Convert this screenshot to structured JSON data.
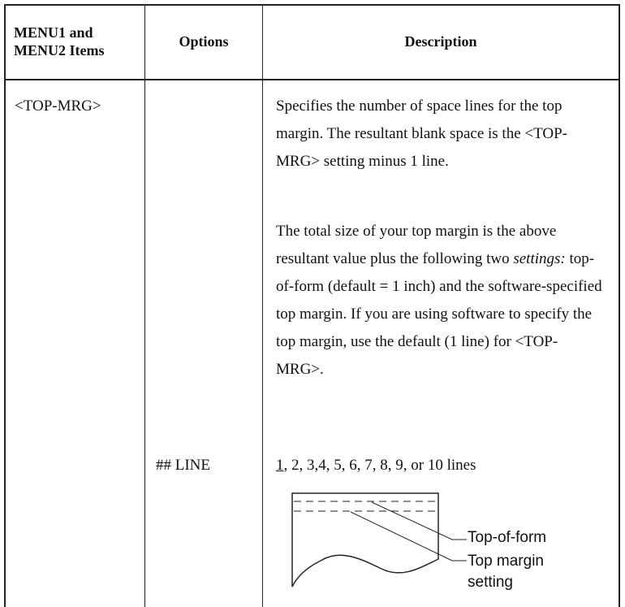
{
  "table": {
    "header": [
      "MENU1 and MENU2 Items",
      "Options",
      "Description"
    ],
    "item": "<TOP-MRG>",
    "description": [
      [
        "Specifies the number of space lines  for the top margin.  The resultant blank space is the <TOP-MRG> setting minus 1 line."
      ],
      [
        "The total size of your top margin is the above resultant value plus the following two ",
        "settings:",
        "  top-of-form (default = 1 inch) and the software-specified top margin.  If you are using software to specify the top margin, use the default (1 line) for <TOP-MRG>."
      ]
    ],
    "option": "## LINE",
    "option_values": [
      "1",
      ", 2, 3,4, 5, 6, 7, 8, 9, or 10 lines"
    ],
    "diagram_labels": [
      "Top-of-form",
      "Top margin setting"
    ]
  }
}
